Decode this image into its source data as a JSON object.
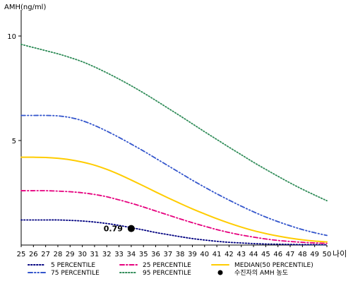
{
  "chart_data": {
    "type": "line",
    "ylabel": "AMH(ng/ml)",
    "xlabel": "나이",
    "xlim": [
      25,
      50
    ],
    "ylim": [
      0,
      11
    ],
    "x_ticks": [
      "25",
      "26",
      "27",
      "28",
      "29",
      "30",
      "31",
      "32",
      "33",
      "34",
      "35",
      "36",
      "37",
      "38",
      "39",
      "40",
      "41",
      "42",
      "43",
      "44",
      "45",
      "46",
      "47",
      "48",
      "49",
      "50"
    ],
    "y_ticks": [
      "5",
      "10"
    ],
    "x": [
      25,
      26,
      27,
      28,
      29,
      30,
      31,
      32,
      33,
      34,
      35,
      36,
      37,
      38,
      39,
      40,
      41,
      42,
      43,
      44,
      45,
      46,
      47,
      48,
      49,
      50
    ],
    "series": [
      {
        "name": "5 PERCENTILE",
        "color": "#000080",
        "dash": "dot",
        "values": [
          1.2,
          1.2,
          1.2,
          1.2,
          1.18,
          1.15,
          1.1,
          1.03,
          0.94,
          0.83,
          0.72,
          0.6,
          0.5,
          0.4,
          0.31,
          0.24,
          0.18,
          0.13,
          0.1,
          0.07,
          0.05,
          0.04,
          0.03,
          0.02,
          0.02,
          0.01
        ]
      },
      {
        "name": "25 PERCENTILE",
        "color": "#e6007e",
        "dash": "dashdot",
        "values": [
          2.6,
          2.6,
          2.6,
          2.58,
          2.55,
          2.5,
          2.42,
          2.31,
          2.16,
          2.0,
          1.82,
          1.63,
          1.44,
          1.25,
          1.07,
          0.9,
          0.74,
          0.6,
          0.48,
          0.38,
          0.29,
          0.22,
          0.17,
          0.13,
          0.1,
          0.08
        ]
      },
      {
        "name": "MEDIAN(50 PERCENTILE)",
        "color": "#ffcc00",
        "dash": "solid",
        "values": [
          4.2,
          4.2,
          4.19,
          4.15,
          4.08,
          3.97,
          3.82,
          3.62,
          3.38,
          3.11,
          2.83,
          2.54,
          2.26,
          1.99,
          1.73,
          1.49,
          1.26,
          1.05,
          0.86,
          0.69,
          0.55,
          0.43,
          0.33,
          0.25,
          0.19,
          0.15
        ]
      },
      {
        "name": "75 PERCENTILE",
        "color": "#3355cc",
        "dash": "dashdotdot",
        "values": [
          6.2,
          6.2,
          6.2,
          6.18,
          6.1,
          5.95,
          5.72,
          5.45,
          5.15,
          4.83,
          4.5,
          4.15,
          3.8,
          3.45,
          3.1,
          2.77,
          2.45,
          2.15,
          1.86,
          1.59,
          1.34,
          1.12,
          0.92,
          0.74,
          0.59,
          0.46
        ]
      },
      {
        "name": "95 PERCENTILE",
        "color": "#2e8b57",
        "dash": "dot",
        "values": [
          9.6,
          9.45,
          9.3,
          9.15,
          8.97,
          8.77,
          8.52,
          8.24,
          7.94,
          7.62,
          7.28,
          6.92,
          6.55,
          6.18,
          5.8,
          5.42,
          5.05,
          4.68,
          4.32,
          3.96,
          3.62,
          3.29,
          2.97,
          2.67,
          2.39,
          2.12
        ]
      }
    ],
    "marker": {
      "name": "수진자의 AMH 농도",
      "x": 34,
      "y": 0.79,
      "label": "0.79",
      "color": "#000000"
    },
    "legend": {
      "placement": "bottom",
      "order": [
        "5 PERCENTILE",
        "25 PERCENTILE",
        "MEDIAN(50 PERCENTILE)",
        "75 PERCENTILE",
        "95 PERCENTILE",
        "수진자의 AMH 농도"
      ]
    },
    "grid": false
  }
}
